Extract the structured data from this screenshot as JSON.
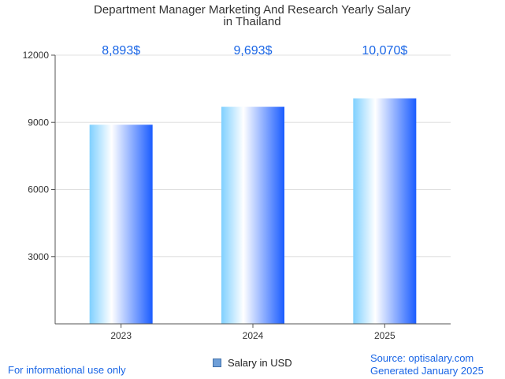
{
  "chart_data": {
    "type": "bar",
    "title_line1": "Department Manager Marketing And Research Yearly Salary",
    "title_line2": "in Thailand",
    "categories": [
      "2023",
      "2024",
      "2025"
    ],
    "series": [
      {
        "name": "Salary in USD",
        "values": [
          8893,
          9693,
          10070
        ],
        "labels": [
          "8,893$",
          "9,693$",
          "10,070$"
        ]
      }
    ],
    "ylim": [
      0,
      12000
    ],
    "yticks": [
      3000,
      6000,
      9000,
      12000
    ],
    "grid": true,
    "legend_position": "bottom"
  },
  "footer": {
    "left": "For informational use only",
    "source": "Source: optisalary.com",
    "generated": "Generated January 2025"
  },
  "colors": {
    "bar_light": "#ffffff",
    "bar_mid": "#7fd0ff",
    "bar_dark": "#1a5cff",
    "label": "#1a66e6"
  }
}
